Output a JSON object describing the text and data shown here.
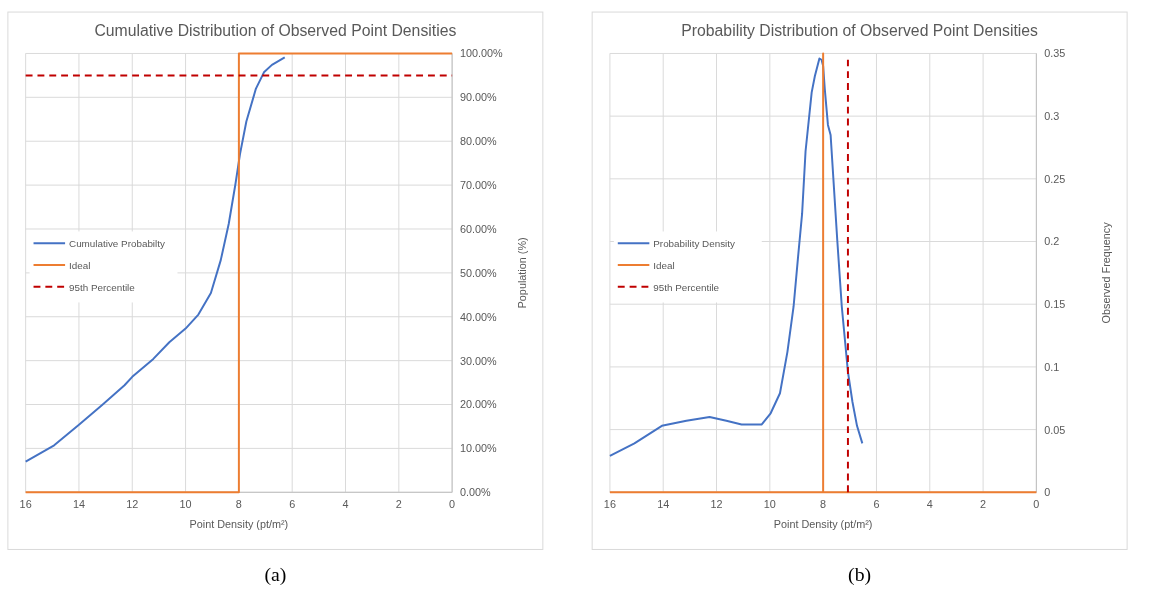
{
  "chart_data": [
    {
      "type": "line",
      "title": "Cumulative Distribution of Observed Point Densities",
      "xlabel": "Point Density (pt/m²)",
      "ylabel": "Population (%)",
      "xlim": [
        16,
        0
      ],
      "xticks": [
        16,
        14,
        12,
        10,
        8,
        6,
        4,
        2,
        0
      ],
      "ylim": [
        0,
        100
      ],
      "yticks": [
        {
          "value": 0,
          "label": "0.00%"
        },
        {
          "value": 10,
          "label": "10.00%"
        },
        {
          "value": 20,
          "label": "20.00%"
        },
        {
          "value": 30,
          "label": "30.00%"
        },
        {
          "value": 40,
          "label": "40.00%"
        },
        {
          "value": 50,
          "label": "50.00%"
        },
        {
          "value": 60,
          "label": "60.00%"
        },
        {
          "value": 70,
          "label": "70.00%"
        },
        {
          "value": 80,
          "label": "80.00%"
        },
        {
          "value": 90,
          "label": "90.00%"
        },
        {
          "value": 100,
          "label": "100.00%"
        }
      ],
      "grid": true,
      "legend": "left",
      "annotations": [
        "(a)"
      ],
      "series": [
        {
          "name": "Cumulative Probabilty",
          "color": "#4472c4",
          "line_style": "solid",
          "x": [
            16,
            14.93,
            14,
            13.13,
            12.29,
            12,
            11.21,
            10.61,
            10,
            9.52,
            9.05,
            8.68,
            8.38,
            8.13,
            7.96,
            7.72,
            7.36,
            7.06,
            6.76,
            6.28
          ],
          "values": [
            7,
            10.7,
            15.4,
            19.9,
            24.4,
            26.3,
            30.4,
            34.2,
            37.3,
            40.5,
            45.4,
            52.9,
            61.2,
            70.2,
            77,
            84.5,
            92,
            95.7,
            97.4,
            99.1
          ]
        },
        {
          "name": "Ideal",
          "color": "#ed7d31",
          "line_style": "solid",
          "x": [
            16,
            8,
            8,
            0
          ],
          "values": [
            0,
            0,
            100,
            100
          ]
        },
        {
          "name": "95th Percentile",
          "color": "#c00000",
          "line_style": "dashed",
          "x": [
            16,
            0
          ],
          "values": [
            95,
            95
          ]
        }
      ]
    },
    {
      "type": "line",
      "title": "Probability Distribution of Observed Point Densities",
      "xlabel": "Point Density (pt/m²)",
      "ylabel": "Observed Frequency",
      "xlim": [
        16,
        0
      ],
      "xticks": [
        16,
        14,
        12,
        10,
        8,
        6,
        4,
        2,
        0
      ],
      "ylim": [
        0,
        0.35
      ],
      "yticks": [
        0,
        0.05,
        0.1,
        0.15,
        0.2,
        0.25,
        0.3,
        0.35
      ],
      "grid": true,
      "legend": "left",
      "annotations": [
        "(b)"
      ],
      "series": [
        {
          "name": "Probability Density",
          "color": "#4472c4",
          "line_style": "solid",
          "x": [
            16,
            15.08,
            14.05,
            13.13,
            12.26,
            11.63,
            11.06,
            10.31,
            9.97,
            9.62,
            9.34,
            9.11,
            8.94,
            8.79,
            8.66,
            8.43,
            8.31,
            8.14,
            8.06,
            8,
            7.94,
            7.82,
            7.72,
            7.47,
            7.3,
            7.07,
            6.9,
            6.73,
            6.53
          ],
          "values": [
            0.029,
            0.039,
            0.053,
            0.057,
            0.06,
            0.057,
            0.054,
            0.054,
            0.063,
            0.079,
            0.112,
            0.148,
            0.188,
            0.222,
            0.272,
            0.319,
            0.332,
            0.346,
            0.345,
            0.34,
            0.322,
            0.293,
            0.285,
            0.201,
            0.148,
            0.096,
            0.072,
            0.053,
            0.039
          ]
        },
        {
          "name": "Ideal",
          "color": "#ed7d31",
          "line_style": "solid",
          "x": [
            16,
            8,
            8,
            8,
            0
          ],
          "values": [
            0,
            0,
            0.35,
            0,
            0
          ]
        },
        {
          "name": "95th Percentile",
          "color": "#c00000",
          "line_style": "dashed",
          "x": [
            7.07,
            7.07
          ],
          "values": [
            0,
            0.345
          ]
        }
      ]
    }
  ]
}
